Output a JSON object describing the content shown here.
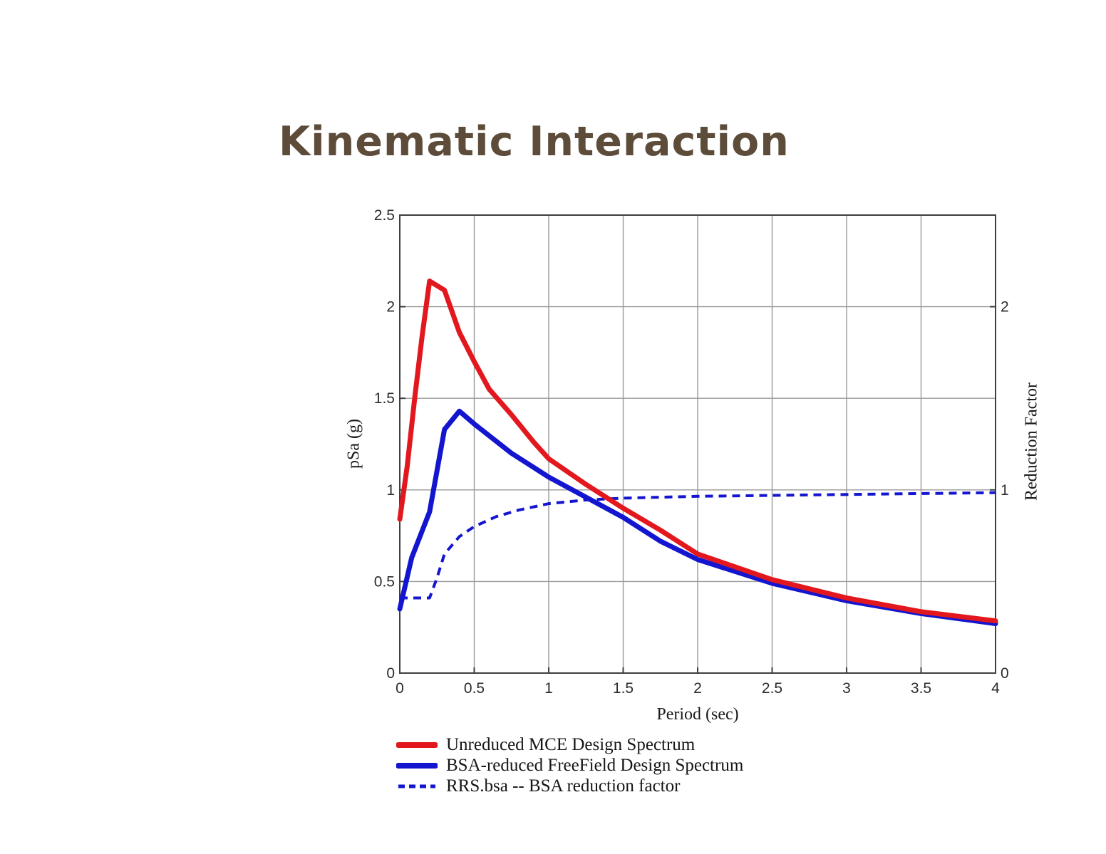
{
  "page": {
    "background": "#ffffff"
  },
  "title": {
    "text": "Kinematic Interaction",
    "color": "#5d4c3a"
  },
  "chart_data": {
    "type": "line",
    "title": "Kinematic Interaction",
    "xlabel": "Period (sec)",
    "ylabel_left": "pSa (g)",
    "ylabel_right": "Reduction Factor",
    "xlim": [
      0,
      4
    ],
    "ylim_left": [
      0,
      2.5
    ],
    "ylim_right": [
      0,
      2.5
    ],
    "grid": true,
    "legend_position": "below-left",
    "xticks": {
      "values": [
        0,
        0.5,
        1,
        1.5,
        2,
        2.5,
        3,
        3.5,
        4
      ],
      "labels": [
        "0",
        "0.5",
        "1",
        "1.5",
        "2",
        "2.5",
        "3",
        "3.5",
        "4"
      ]
    },
    "yticks_left": {
      "values": [
        0,
        0.5,
        1,
        1.5,
        2,
        2.5
      ],
      "labels": [
        "0",
        "0.5",
        "1",
        "1.5",
        "2",
        "2.5"
      ]
    },
    "yticks_right": {
      "values": [
        0,
        1,
        2
      ],
      "labels": [
        "0",
        "1",
        "2"
      ]
    },
    "series": [
      {
        "name": "Unreduced MCE Design Spectrum",
        "color": "#e2181e",
        "style": "solid",
        "width": 7,
        "axis": "left",
        "points": [
          [
            0,
            0.84
          ],
          [
            0.05,
            1.13
          ],
          [
            0.1,
            1.5
          ],
          [
            0.15,
            1.84
          ],
          [
            0.2,
            2.14
          ],
          [
            0.3,
            2.09
          ],
          [
            0.4,
            1.86
          ],
          [
            0.5,
            1.7
          ],
          [
            0.6,
            1.55
          ],
          [
            0.75,
            1.41
          ],
          [
            0.9,
            1.26
          ],
          [
            1.0,
            1.17
          ],
          [
            1.25,
            1.03
          ],
          [
            1.5,
            0.9
          ],
          [
            1.75,
            0.78
          ],
          [
            2.0,
            0.65
          ],
          [
            2.5,
            0.51
          ],
          [
            3.0,
            0.41
          ],
          [
            3.5,
            0.335
          ],
          [
            4.0,
            0.285
          ]
        ]
      },
      {
        "name": "BSA-reduced FreeField Design Spectrum",
        "color": "#1316ce",
        "style": "solid",
        "width": 7,
        "axis": "left",
        "points": [
          [
            0,
            0.35
          ],
          [
            0.08,
            0.63
          ],
          [
            0.2,
            0.88
          ],
          [
            0.3,
            1.33
          ],
          [
            0.4,
            1.43
          ],
          [
            0.5,
            1.36
          ],
          [
            0.75,
            1.2
          ],
          [
            1.0,
            1.07
          ],
          [
            1.25,
            0.96
          ],
          [
            1.5,
            0.85
          ],
          [
            1.75,
            0.72
          ],
          [
            2.0,
            0.62
          ],
          [
            2.5,
            0.49
          ],
          [
            3.0,
            0.395
          ],
          [
            3.5,
            0.325
          ],
          [
            4.0,
            0.27
          ]
        ]
      },
      {
        "name": "RRS.bsa -- BSA reduction factor",
        "color": "#1316ce",
        "style": "dashed",
        "width": 4,
        "axis": "right",
        "points": [
          [
            0,
            0.41
          ],
          [
            0.2,
            0.41
          ],
          [
            0.25,
            0.52
          ],
          [
            0.3,
            0.65
          ],
          [
            0.4,
            0.745
          ],
          [
            0.5,
            0.8
          ],
          [
            0.65,
            0.855
          ],
          [
            0.8,
            0.89
          ],
          [
            1.0,
            0.925
          ],
          [
            1.25,
            0.945
          ],
          [
            1.5,
            0.955
          ],
          [
            2.0,
            0.965
          ],
          [
            2.5,
            0.97
          ],
          [
            3.0,
            0.975
          ],
          [
            3.5,
            0.98
          ],
          [
            4.0,
            0.985
          ]
        ]
      }
    ],
    "colors": {
      "grid": "#999999",
      "frame": "#3f3f3f",
      "tick_label": "#2b2b2b",
      "axis_label": "#1a1a1a"
    }
  }
}
